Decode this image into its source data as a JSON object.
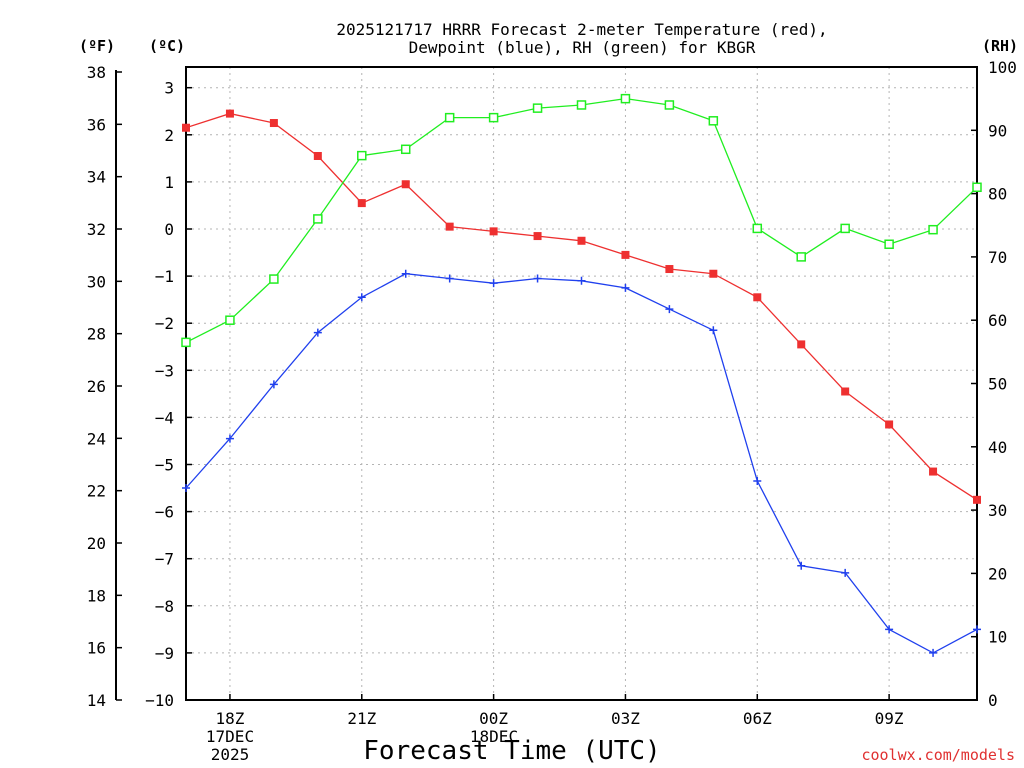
{
  "chart_data": {
    "type": "line",
    "title_line1": "2025121717 HRRR Forecast 2-meter Temperature (red),",
    "title_line2": "Dewpoint (blue), RH (green) for KBGR",
    "xlabel": "Forecast Time (UTC)",
    "credit": "coolwx.com/models",
    "date_label_1": "17DEC",
    "date_label_2": "2025",
    "date_label_3": "18DEC",
    "left_f_unit": "(ºF)",
    "left_c_unit": "(ºC)",
    "right_unit": "(RH)",
    "x_hours": [
      17,
      18,
      19,
      20,
      21,
      22,
      23,
      24,
      25,
      26,
      27,
      28,
      29,
      30,
      31,
      32,
      33,
      34,
      35
    ],
    "x_range": [
      17,
      35
    ],
    "x_ticks": [
      {
        "hour": 18,
        "label": "18Z"
      },
      {
        "hour": 21,
        "label": "21Z"
      },
      {
        "hour": 24,
        "label": "00Z"
      },
      {
        "hour": 27,
        "label": "03Z"
      },
      {
        "hour": 30,
        "label": "06Z"
      },
      {
        "hour": 33,
        "label": "09Z"
      }
    ],
    "y_celsius_range": [
      -10,
      3.4
    ],
    "y_celsius_ticks": [
      -10,
      -9,
      -8,
      -7,
      -6,
      -5,
      -4,
      -3,
      -2,
      -1,
      0,
      1,
      2,
      3
    ],
    "y_fahrenheit_ticks": [
      14,
      16,
      18,
      20,
      22,
      24,
      26,
      28,
      30,
      32,
      34,
      36,
      38
    ],
    "y_rh_range": [
      0,
      100
    ],
    "y_rh_ticks": [
      0,
      10,
      20,
      30,
      40,
      50,
      60,
      70,
      80,
      90,
      100
    ],
    "series": [
      {
        "name": "2-meter Temperature",
        "axis": "celsius",
        "color": "#ee3030",
        "marker": "filled-square",
        "values": [
          2.15,
          2.45,
          2.25,
          1.55,
          0.55,
          0.95,
          0.05,
          -0.05,
          -0.15,
          -0.25,
          -0.55,
          -0.85,
          -0.95,
          -1.45,
          -2.45,
          -3.45,
          -4.15,
          -5.15,
          -5.75
        ]
      },
      {
        "name": "Dewpoint",
        "axis": "celsius",
        "color": "#2040ee",
        "marker": "plus",
        "values": [
          -5.5,
          -4.45,
          -3.3,
          -2.2,
          -1.45,
          -0.95,
          -1.05,
          -1.15,
          -1.05,
          -1.1,
          -1.25,
          -1.7,
          -2.15,
          -5.35,
          -7.15,
          -7.3,
          -8.5,
          -9.0,
          -8.5
        ]
      },
      {
        "name": "RH",
        "axis": "rh",
        "color": "#20ee20",
        "marker": "open-square",
        "values": [
          56.5,
          60,
          66.5,
          76,
          86,
          87,
          92,
          92,
          93.5,
          94,
          95,
          94,
          91.5,
          74.5,
          70,
          74.5,
          72,
          74.3,
          81
        ]
      }
    ]
  }
}
